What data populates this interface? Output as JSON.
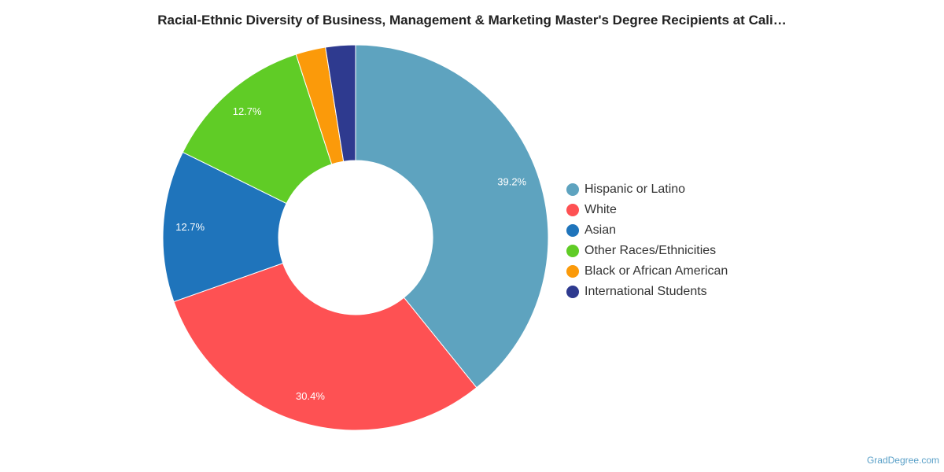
{
  "chart_data": {
    "type": "pie",
    "title": "Racial-Ethnic Diversity of Business, Management & Marketing Master's Degree Recipients at Cali…",
    "donut": true,
    "legend_position": "right",
    "series": [
      {
        "name": "Hispanic or Latino",
        "value": 39.2,
        "label": "39.2%",
        "color": "#5ea3bf"
      },
      {
        "name": "White",
        "value": 30.4,
        "label": "30.4%",
        "color": "#fe5153"
      },
      {
        "name": "Asian",
        "value": 12.7,
        "label": "12.7%",
        "color": "#1f74bb"
      },
      {
        "name": "Other Races/Ethnicities",
        "value": 12.7,
        "label": "12.7%",
        "color": "#60cc26"
      },
      {
        "name": "Black or African American",
        "value": 2.5,
        "label": "",
        "color": "#fb9a0a"
      },
      {
        "name": "International Students",
        "value": 2.5,
        "label": "",
        "color": "#2e3a8f"
      }
    ]
  },
  "credit": "GradDegree.com"
}
